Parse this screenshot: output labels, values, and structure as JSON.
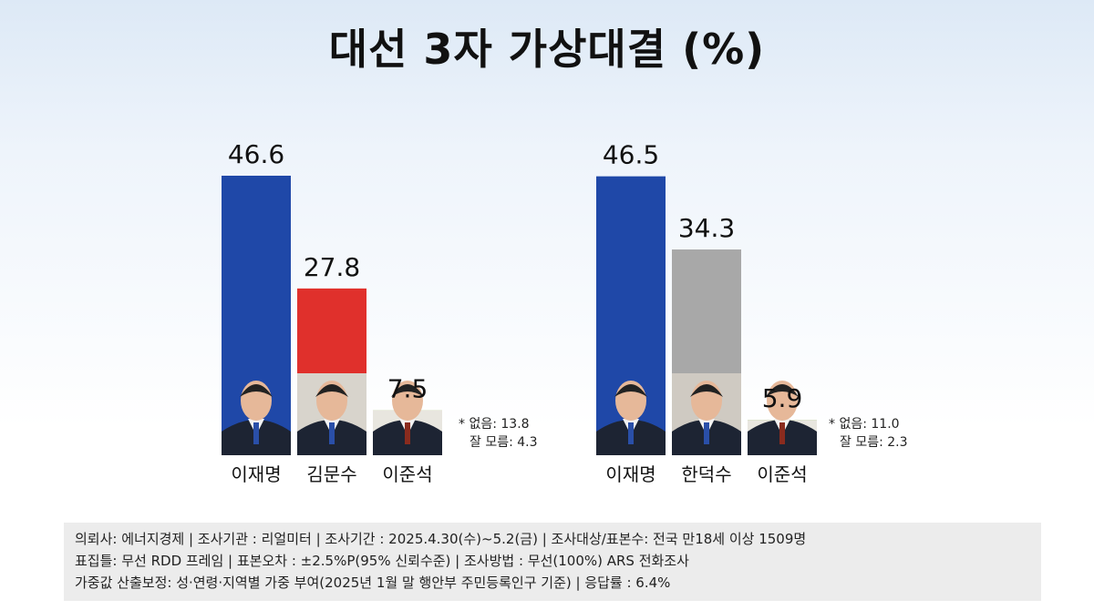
{
  "title": "대선 3자 가상대결 (%)",
  "chart_data": [
    {
      "type": "bar",
      "categories": [
        "이재명",
        "김문수",
        "이준석"
      ],
      "values": [
        46.6,
        27.8,
        7.5
      ],
      "colors": [
        "#1f48a8",
        "#e0302c",
        "#7fb02e"
      ],
      "ylim": [
        0,
        50
      ],
      "note": [
        "* 없음: 13.8",
        "잘 모름: 4.3"
      ]
    },
    {
      "type": "bar",
      "categories": [
        "이재명",
        "한덕수",
        "이준석"
      ],
      "values": [
        46.5,
        34.3,
        5.9
      ],
      "colors": [
        "#1f48a8",
        "#a8a8a8",
        "#7fb02e"
      ],
      "ylim": [
        0,
        50
      ],
      "note": [
        "* 없음: 11.0",
        "잘 모름: 2.3"
      ]
    }
  ],
  "footer": {
    "line1": "의뢰사: 에너지경제 | 조사기관 : 리얼미터  |  조사기간 : 2025.4.30(수)~5.2(금) | 조사대상/표본수: 전국 만18세 이상 1509명",
    "line2": "표집틀: 무선 RDD 프레임 | 표본오차 : ±2.5%P(95% 신뢰수준) | 조사방법 : 무선(100%) ARS 전화조사",
    "line3": "가중값 산출보정: 성·연령·지역별 가중 부여(2025년 1월 말 행안부 주민등록인구 기준) | 응답률 : 6.4%"
  }
}
